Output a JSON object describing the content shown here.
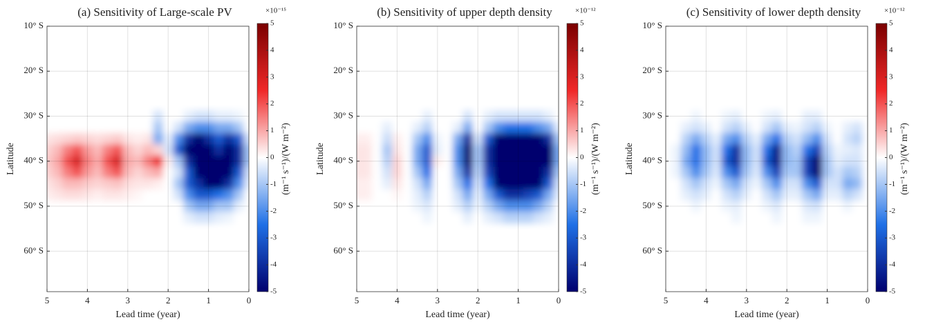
{
  "chart_data": [
    {
      "type": "heatmap",
      "title": "(a) Sensitivity of Large-scale PV",
      "xlabel": "Lead time (year)",
      "ylabel": "Latitude",
      "colorbar_label": "(m⁻¹ s⁻¹)/(W m⁻²)",
      "colorbar_exponent": "×10⁻¹⁵",
      "xlim": [
        5,
        0
      ],
      "xticks": [
        5,
        4,
        3,
        2,
        1,
        0
      ],
      "ylim": [
        -69,
        -10
      ],
      "yticks": [
        {
          "value": -10,
          "label": "10° S"
        },
        {
          "value": -20,
          "label": "20° S"
        },
        {
          "value": -30,
          "label": "30° S"
        },
        {
          "value": -40,
          "label": "40° S"
        },
        {
          "value": -50,
          "label": "50° S"
        },
        {
          "value": -60,
          "label": "60° S"
        }
      ],
      "zlim": [
        -5,
        5
      ],
      "zticks": [
        -5,
        -4,
        -3,
        -2,
        -1,
        0,
        1,
        2,
        3,
        4,
        5
      ],
      "colormap": [
        "#00006e",
        "#1f70e6",
        "#ffffff",
        "#f02828",
        "#7a0000"
      ],
      "grid": true,
      "x": [
        5,
        4.75,
        4.5,
        4.25,
        4,
        3.75,
        3.5,
        3.25,
        3,
        2.75,
        2.5,
        2.25,
        2,
        1.75,
        1.5,
        1.25,
        1,
        0.75,
        0.5,
        0.25,
        0
      ],
      "y": [
        -30,
        -32.5,
        -35,
        -37.5,
        -40,
        -42.5,
        -45,
        -47.5,
        -50,
        -52.5
      ],
      "z": [
        [
          0,
          0,
          0,
          0,
          0,
          0,
          0,
          0,
          0,
          0,
          0,
          -0.5,
          0,
          0,
          -0.3,
          -0.5,
          -0.5,
          -0.3,
          -0.3,
          -0.2,
          0
        ],
        [
          0,
          0,
          0,
          0,
          0,
          0,
          0,
          0,
          0,
          0,
          0,
          -1,
          0,
          -0.5,
          -1.5,
          -2,
          -2,
          -1.5,
          -1.5,
          -1,
          0
        ],
        [
          0.3,
          0.4,
          0.5,
          0.6,
          0.5,
          0.4,
          0.5,
          0.6,
          0.3,
          0.2,
          0.3,
          -1.5,
          -0.3,
          -2,
          -4,
          -5,
          -4,
          -3,
          -4,
          -3,
          -0.5
        ],
        [
          0.5,
          0.8,
          1.5,
          2,
          1.2,
          0.8,
          1.5,
          2,
          0.8,
          0.5,
          0.8,
          0.5,
          -0.5,
          -3,
          -5,
          -5,
          -5,
          -4,
          -5,
          -4,
          -1
        ],
        [
          0.6,
          1,
          2,
          3,
          1.5,
          1,
          2,
          3,
          1,
          0.8,
          1.5,
          2.5,
          0.2,
          -1,
          -4,
          -5,
          -5,
          -5,
          -5,
          -4,
          -1
        ],
        [
          0.5,
          0.8,
          1.5,
          2,
          1.2,
          0.8,
          1.5,
          2,
          0.8,
          0.5,
          0.8,
          1,
          0,
          -0.5,
          -3,
          -5,
          -5,
          -5,
          -5,
          -3,
          -0.5
        ],
        [
          0.3,
          0.5,
          0.8,
          0.8,
          0.6,
          0.5,
          0.6,
          0.7,
          0.4,
          0.3,
          0.3,
          0.2,
          0,
          -1,
          -3,
          -4,
          -5,
          -5,
          -4,
          -2,
          -0.3
        ],
        [
          0.2,
          0.3,
          0.4,
          0.4,
          0.3,
          0.2,
          0.3,
          0.3,
          0.2,
          0.1,
          0,
          0,
          0,
          -0.5,
          -2,
          -3,
          -3,
          -2.5,
          -2,
          -1,
          0
        ],
        [
          0,
          0,
          0,
          0,
          0,
          0,
          0,
          0,
          0,
          0,
          0,
          0,
          0,
          0,
          -1,
          -1.5,
          -1.5,
          -1,
          -1,
          -0.3,
          0
        ],
        [
          0,
          0,
          0,
          0,
          0,
          0,
          0,
          0,
          0,
          0,
          0,
          0,
          0,
          0,
          -0.3,
          -0.5,
          -0.5,
          -0.3,
          -0.2,
          0,
          0
        ]
      ]
    },
    {
      "type": "heatmap",
      "title": "(b) Sensitivity of upper depth density",
      "xlabel": "Lead time (year)",
      "ylabel": "Latitude",
      "colorbar_label": "(m⁻¹ s⁻¹)/(W m⁻²)",
      "colorbar_exponent": "×10⁻¹²",
      "xlim": [
        5,
        0
      ],
      "xticks": [
        5,
        4,
        3,
        2,
        1,
        0
      ],
      "ylim": [
        -69,
        -10
      ],
      "yticks": [
        {
          "value": -10,
          "label": "10° S"
        },
        {
          "value": -20,
          "label": "20° S"
        },
        {
          "value": -30,
          "label": "30° S"
        },
        {
          "value": -40,
          "label": "40° S"
        },
        {
          "value": -50,
          "label": "50° S"
        },
        {
          "value": -60,
          "label": "60° S"
        }
      ],
      "zlim": [
        -5,
        5
      ],
      "zticks": [
        -5,
        -4,
        -3,
        -2,
        -1,
        0,
        1,
        2,
        3,
        4,
        5
      ],
      "colormap": [
        "#00006e",
        "#1f70e6",
        "#ffffff",
        "#f02828",
        "#7a0000"
      ],
      "grid": true,
      "x": [
        5,
        4.75,
        4.5,
        4.25,
        4,
        3.75,
        3.5,
        3.25,
        3,
        2.75,
        2.5,
        2.25,
        2,
        1.75,
        1.5,
        1.25,
        1,
        0.75,
        0.5,
        0.25,
        0
      ],
      "y": [
        -30,
        -32.5,
        -35,
        -37.5,
        -40,
        -42.5,
        -45,
        -47.5,
        -50,
        -52.5
      ],
      "z": [
        [
          0,
          0,
          0,
          0,
          0,
          0,
          0,
          -0.3,
          0,
          0,
          0,
          -0.5,
          0,
          -0.3,
          -0.5,
          -0.5,
          -0.5,
          -0.5,
          -0.5,
          -0.3,
          0
        ],
        [
          0,
          0,
          0,
          -0.3,
          0,
          0,
          -0.3,
          -0.8,
          0,
          0,
          -0.3,
          -1.5,
          0,
          -1,
          -2,
          -2.5,
          -2.5,
          -2.5,
          -2,
          -1.5,
          -0.3
        ],
        [
          0.2,
          0.2,
          0,
          -0.6,
          0.2,
          0,
          -1,
          -2,
          -0.2,
          0,
          -1.5,
          -4,
          -0.5,
          -3,
          -5,
          -5,
          -5,
          -5,
          -5,
          -4,
          -1
        ],
        [
          0.3,
          0.3,
          0,
          -1,
          0.3,
          0,
          -1.5,
          -3,
          -0.3,
          0,
          -2,
          -5,
          -1,
          -4,
          -5,
          -5,
          -5,
          -5,
          -5,
          -5,
          -1.5
        ],
        [
          0.3,
          0.3,
          0,
          -0.8,
          0.5,
          0,
          -1.5,
          -3,
          0.2,
          0,
          -2,
          -5,
          -1,
          -4,
          -5,
          -5,
          -5,
          -5,
          -5,
          -5,
          -1.5
        ],
        [
          0.3,
          0.3,
          0,
          -0.5,
          0.5,
          0,
          -1,
          -2.5,
          0,
          0,
          -1.5,
          -4,
          -0.8,
          -3.5,
          -5,
          -5,
          -5,
          -5,
          -5,
          -4,
          -1
        ],
        [
          0.2,
          0.2,
          0,
          -0.3,
          0.3,
          0,
          -0.5,
          -1.5,
          0,
          0,
          -1,
          -2.5,
          -0.5,
          -2.5,
          -5,
          -5,
          -5,
          -5,
          -5,
          -3,
          -0.5
        ],
        [
          0.2,
          0.2,
          0,
          0,
          0.1,
          0,
          -0.3,
          -0.8,
          0,
          0,
          -0.5,
          -1.5,
          -0.3,
          -1.5,
          -3,
          -4,
          -4,
          -3.5,
          -3,
          -1.5,
          -0.3
        ],
        [
          0,
          0,
          0,
          0,
          0,
          0,
          -0.2,
          -0.4,
          0,
          0,
          -0.3,
          -0.8,
          -0.2,
          -0.8,
          -1.5,
          -2,
          -2,
          -2,
          -1.5,
          -0.8,
          0
        ],
        [
          0,
          0,
          0,
          0,
          0,
          0,
          0,
          -0.2,
          0,
          0,
          0,
          -0.3,
          0,
          -0.3,
          -0.5,
          -0.8,
          -0.8,
          -0.8,
          -0.5,
          -0.3,
          0
        ]
      ]
    },
    {
      "type": "heatmap",
      "title": "(c) Sensitivity of lower depth density",
      "xlabel": "Lead time (year)",
      "ylabel": "Latitude",
      "colorbar_label": "(m⁻¹ s⁻¹)/(W m⁻²)",
      "colorbar_exponent": "×10⁻¹²",
      "xlim": [
        5,
        0
      ],
      "xticks": [
        5,
        4,
        3,
        2,
        1,
        0
      ],
      "ylim": [
        -69,
        -10
      ],
      "yticks": [
        {
          "value": -10,
          "label": "10° S"
        },
        {
          "value": -20,
          "label": "20° S"
        },
        {
          "value": -30,
          "label": "30° S"
        },
        {
          "value": -40,
          "label": "40° S"
        },
        {
          "value": -50,
          "label": "50° S"
        },
        {
          "value": -60,
          "label": "60° S"
        }
      ],
      "zlim": [
        -5,
        5
      ],
      "zticks": [
        -5,
        -4,
        -3,
        -2,
        -1,
        0,
        1,
        2,
        3,
        4,
        5
      ],
      "colormap": [
        "#00006e",
        "#1f70e6",
        "#ffffff",
        "#f02828",
        "#7a0000"
      ],
      "grid": true,
      "x": [
        5,
        4.75,
        4.5,
        4.25,
        4,
        3.75,
        3.5,
        3.25,
        3,
        2.75,
        2.5,
        2.25,
        2,
        1.75,
        1.5,
        1.25,
        1,
        0.75,
        0.5,
        0.25,
        0
      ],
      "y": [
        -30,
        -32.5,
        -35,
        -37.5,
        -40,
        -42.5,
        -45,
        -47.5,
        -50,
        -52.5
      ],
      "z": [
        [
          0,
          0,
          0,
          -0.2,
          0,
          0,
          -0.2,
          -0.3,
          0,
          0,
          -0.2,
          -0.3,
          0,
          0,
          -0.3,
          -0.3,
          0,
          0,
          0,
          0,
          0
        ],
        [
          0,
          0,
          -0.3,
          -0.5,
          -0.3,
          0,
          -0.5,
          -0.8,
          -0.3,
          0,
          -0.5,
          -1,
          -0.3,
          -0.2,
          -0.5,
          -0.8,
          -0.2,
          0,
          -0.3,
          -0.5,
          0
        ],
        [
          0,
          0,
          -0.8,
          -1.5,
          -0.8,
          -0.3,
          -1.5,
          -2,
          -0.8,
          -0.3,
          -1.5,
          -2.5,
          -0.8,
          -0.5,
          -1.2,
          -2,
          -0.5,
          0,
          -0.5,
          -0.8,
          0
        ],
        [
          0,
          -0.2,
          -1.2,
          -2.5,
          -1.2,
          -0.5,
          -2.5,
          -4,
          -1.2,
          -0.5,
          -2.5,
          -4.5,
          -1.2,
          -0.8,
          -2.5,
          -3.5,
          -0.8,
          -0.2,
          -0.3,
          -0.4,
          0
        ],
        [
          0,
          -0.2,
          -1.5,
          -2.5,
          -1.2,
          -0.5,
          -3,
          -4,
          -1.2,
          -0.5,
          -3,
          -4.5,
          -1.2,
          -1,
          -3.5,
          -5,
          -1,
          -0.3,
          -0.5,
          -0.5,
          0
        ],
        [
          0,
          -0.2,
          -1,
          -2,
          -1,
          -0.4,
          -2,
          -3,
          -1,
          -0.4,
          -2,
          -3.5,
          -1,
          -1,
          -3.5,
          -5,
          -1,
          -0.5,
          -1,
          -0.8,
          0
        ],
        [
          0,
          0,
          -0.5,
          -1,
          -0.5,
          -0.2,
          -1,
          -1.5,
          -0.5,
          -0.2,
          -1,
          -2,
          -0.5,
          -0.5,
          -2,
          -3,
          -0.5,
          -0.5,
          -1.5,
          -1.2,
          0
        ],
        [
          0,
          0,
          -0.3,
          -0.5,
          -0.3,
          0,
          -0.5,
          -0.8,
          -0.3,
          0,
          -0.5,
          -1,
          -0.3,
          -0.3,
          -1,
          -1.5,
          -0.3,
          -0.3,
          -0.8,
          -0.5,
          0
        ],
        [
          0,
          0,
          0,
          -0.2,
          0,
          0,
          -0.2,
          -0.3,
          0,
          0,
          -0.2,
          -0.4,
          0,
          0,
          -0.4,
          -0.5,
          0,
          0,
          -0.2,
          0,
          0
        ],
        [
          0,
          0,
          0,
          0,
          0,
          0,
          0,
          -0.2,
          0,
          0,
          0,
          -0.2,
          0,
          0,
          -0.2,
          -0.2,
          0,
          0,
          0,
          0,
          0
        ]
      ]
    }
  ]
}
